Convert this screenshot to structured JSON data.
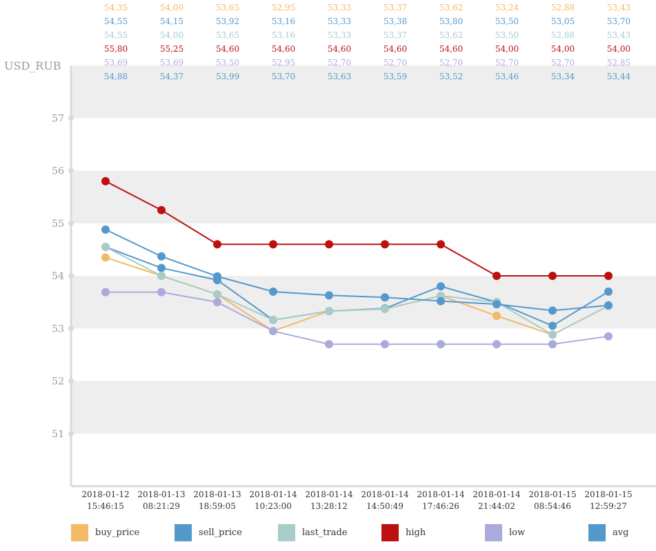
{
  "chart_data": {
    "type": "line",
    "ylabel": "USD_RUB",
    "ylim": [
      50,
      58
    ],
    "yticks": [
      51,
      52,
      53,
      54,
      55,
      56,
      57
    ],
    "grid": "alternating horizontal bands",
    "legend_position": "bottom",
    "categories": [
      [
        "2018-01-12",
        "15:46:15"
      ],
      [
        "2018-01-13",
        "08:21:29"
      ],
      [
        "2018-01-13",
        "18:59:05"
      ],
      [
        "2018-01-14",
        "10:23:00"
      ],
      [
        "2018-01-14",
        "13:28:12"
      ],
      [
        "2018-01-14",
        "14:50:49"
      ],
      [
        "2018-01-14",
        "17:46:26"
      ],
      [
        "2018-01-14",
        "21:44:02"
      ],
      [
        "2018-01-15",
        "08:54:46"
      ],
      [
        "2018-01-15",
        "12:59:27"
      ]
    ],
    "series": [
      {
        "name": "buy_price",
        "color": "#f3b964",
        "labels": [
          "54,35",
          "54,00",
          "53,65",
          "52,95",
          "53,33",
          "53,37",
          "53,62",
          "53,24",
          "52,88",
          "53,43"
        ],
        "values": [
          54.35,
          54.0,
          53.65,
          52.95,
          53.33,
          53.37,
          53.62,
          53.24,
          52.88,
          53.43
        ]
      },
      {
        "name": "sell_price",
        "color": "#5599cc",
        "labels": [
          "54,55",
          "54,15",
          "53,92",
          "53,16",
          "53,33",
          "53,38",
          "53,80",
          "53,50",
          "53,05",
          "53,70"
        ],
        "values": [
          54.55,
          54.15,
          53.92,
          53.16,
          53.33,
          53.38,
          53.8,
          53.5,
          53.05,
          53.7
        ]
      },
      {
        "name": "last_trade",
        "color": "#a8ccc8",
        "labels": [
          "54,55",
          "54,00",
          "53,65",
          "53,16",
          "53,33",
          "53,37",
          "53,62",
          "53,50",
          "52,88",
          "53,43"
        ],
        "values": [
          54.55,
          54.0,
          53.65,
          53.16,
          53.33,
          53.37,
          53.62,
          53.5,
          52.88,
          53.43
        ]
      },
      {
        "name": "high",
        "color": "#bb1111",
        "labels": [
          "55,80",
          "55,25",
          "54,60",
          "54,60",
          "54,60",
          "54,60",
          "54,60",
          "54,00",
          "54,00",
          "54,00"
        ],
        "values": [
          55.8,
          55.25,
          54.6,
          54.6,
          54.6,
          54.6,
          54.6,
          54.0,
          54.0,
          54.0
        ]
      },
      {
        "name": "low",
        "color": "#aaaadd",
        "labels": [
          "53,69",
          "53,69",
          "53,50",
          "52,95",
          "52,70",
          "52,70",
          "52,70",
          "52,70",
          "52,70",
          "52,85"
        ],
        "values": [
          53.69,
          53.69,
          53.5,
          52.95,
          52.7,
          52.7,
          52.7,
          52.7,
          52.7,
          52.85
        ]
      },
      {
        "name": "avg",
        "color": "#5599cc",
        "labels": [
          "54,88",
          "54,37",
          "53,99",
          "53,70",
          "53,63",
          "53,59",
          "53,52",
          "53,46",
          "53,34",
          "53,44"
        ],
        "values": [
          54.88,
          54.37,
          53.99,
          53.7,
          53.63,
          53.59,
          53.52,
          53.46,
          53.34,
          53.44
        ]
      }
    ]
  },
  "colors": {
    "band": "#eeeeee",
    "axis": "#d3dbe3",
    "tick_text": "#999999",
    "label_text": "#333333"
  }
}
